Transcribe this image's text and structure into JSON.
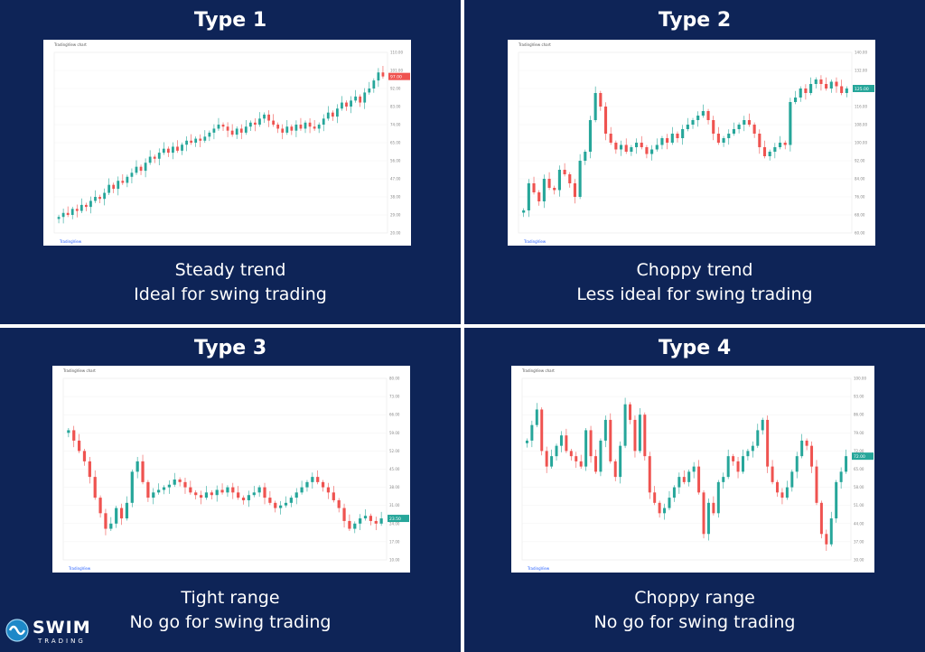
{
  "panels": [
    {
      "title": "Type 1",
      "caption_line1": "Steady trend",
      "caption_line2": "Ideal for swing trading"
    },
    {
      "title": "Type 2",
      "caption_line1": "Choppy trend",
      "caption_line2": "Less ideal for swing trading"
    },
    {
      "title": "Type 3",
      "caption_line1": "Tight range",
      "caption_line2": "No go for swing trading"
    },
    {
      "title": "Type 4",
      "caption_line1": "Choppy range",
      "caption_line2": "No go for swing trading"
    }
  ],
  "colors": {
    "panel_bg": "#0e2457",
    "up": "#26a69a",
    "down": "#ef5350",
    "text": "#ffffff"
  },
  "logo": {
    "word": "SWIM",
    "sub": "TRADING"
  },
  "chart_data": [
    {
      "type": "candlestick",
      "title": "Type 1",
      "header": "TradingView chart",
      "ylim": [
        20,
        110
      ],
      "close": [
        28,
        30,
        29,
        32,
        31,
        34,
        33,
        36,
        38,
        37,
        40,
        44,
        42,
        46,
        45,
        48,
        50,
        53,
        51,
        55,
        58,
        57,
        60,
        62,
        60,
        63,
        61,
        64,
        66,
        65,
        67,
        66,
        68,
        70,
        72,
        74,
        73,
        71,
        69,
        72,
        70,
        73,
        75,
        74,
        77,
        79,
        76,
        74,
        72,
        70,
        73,
        71,
        74,
        72,
        75,
        73,
        72,
        74,
        77,
        80,
        78,
        82,
        85,
        83,
        86,
        88,
        85,
        90,
        92,
        96,
        100,
        98
      ],
      "price_label": "97.00"
    },
    {
      "type": "candlestick",
      "title": "Type 2",
      "header": "TradingView chart",
      "ylim": [
        60,
        140
      ],
      "close": [
        70,
        82,
        78,
        74,
        84,
        80,
        79,
        88,
        86,
        82,
        76,
        92,
        96,
        110,
        122,
        116,
        104,
        100,
        97,
        99,
        96,
        98,
        100,
        98,
        95,
        97,
        99,
        102,
        100,
        104,
        102,
        106,
        108,
        110,
        112,
        114,
        110,
        104,
        100,
        102,
        104,
        106,
        108,
        110,
        108,
        104,
        98,
        94,
        96,
        98,
        100,
        99,
        118,
        120,
        124,
        122,
        126,
        128,
        126,
        124,
        127,
        125,
        122,
        124
      ],
      "price_label": "125.00"
    },
    {
      "type": "candlestick",
      "title": "Type 3",
      "header": "TradingView chart",
      "ylim": [
        10,
        80
      ],
      "close": [
        60,
        56,
        52,
        48,
        42,
        34,
        28,
        22,
        24,
        30,
        26,
        32,
        44,
        48,
        40,
        34,
        36,
        37,
        38,
        39,
        41,
        40,
        38,
        36,
        35,
        34,
        36,
        35,
        37,
        36,
        38,
        36,
        34,
        33,
        35,
        36,
        38,
        34,
        32,
        30,
        31,
        32,
        34,
        36,
        38,
        40,
        42,
        40,
        38,
        36,
        33,
        30,
        25,
        22,
        24,
        26,
        27,
        25,
        24,
        26
      ],
      "price_label": "23.50"
    },
    {
      "type": "candlestick",
      "title": "Type 4",
      "header": "TradingView chart",
      "ylim": [
        30,
        100
      ],
      "close": [
        76,
        82,
        88,
        72,
        66,
        70,
        74,
        78,
        72,
        70,
        68,
        66,
        80,
        70,
        64,
        76,
        84,
        68,
        62,
        74,
        90,
        84,
        72,
        86,
        70,
        56,
        52,
        48,
        50,
        54,
        58,
        62,
        60,
        64,
        66,
        56,
        40,
        52,
        48,
        60,
        62,
        70,
        68,
        64,
        70,
        72,
        74,
        80,
        84,
        66,
        60,
        56,
        54,
        58,
        64,
        70,
        76,
        74,
        66,
        52,
        40,
        36,
        46,
        60,
        64,
        70
      ],
      "price_label": "72.00"
    }
  ]
}
